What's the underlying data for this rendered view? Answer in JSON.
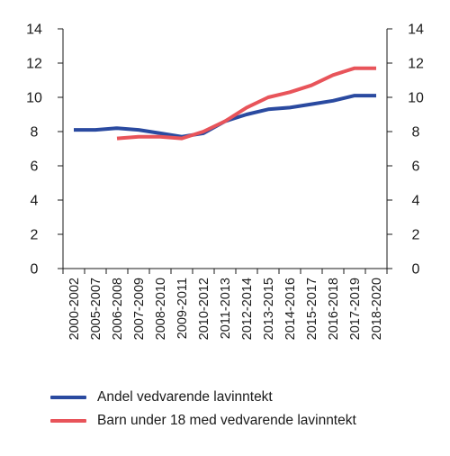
{
  "chart_data": {
    "type": "line",
    "categories": [
      "2000-2002",
      "2005-2007",
      "2006-2008",
      "2007-2009",
      "2008-2010",
      "2009-2011",
      "2010-2012",
      "2011-2013",
      "2012-2014",
      "2013-2015",
      "2014-2016",
      "2015-2017",
      "2016-2018",
      "2017-2019",
      "2018-2020"
    ],
    "series": [
      {
        "name": "Andel vedvarende lavinntekt",
        "color": "#2a4aa0",
        "values": [
          8.1,
          8.1,
          8.2,
          8.1,
          7.9,
          7.7,
          7.9,
          8.6,
          9.0,
          9.3,
          9.4,
          9.6,
          9.8,
          10.1,
          10.1
        ]
      },
      {
        "name": "Barn under 18 med vedvarende lavinntekt",
        "color": "#e8545a",
        "values": [
          null,
          null,
          7.6,
          7.7,
          7.7,
          7.6,
          8.0,
          8.6,
          9.4,
          10.0,
          10.3,
          10.7,
          11.3,
          11.7,
          11.7
        ]
      }
    ],
    "ylim": [
      0,
      14
    ],
    "yticks": [
      0,
      2,
      4,
      6,
      8,
      10,
      12,
      14
    ],
    "right_axis_ticks": true,
    "grid": false,
    "legend_position": "bottom-left"
  }
}
